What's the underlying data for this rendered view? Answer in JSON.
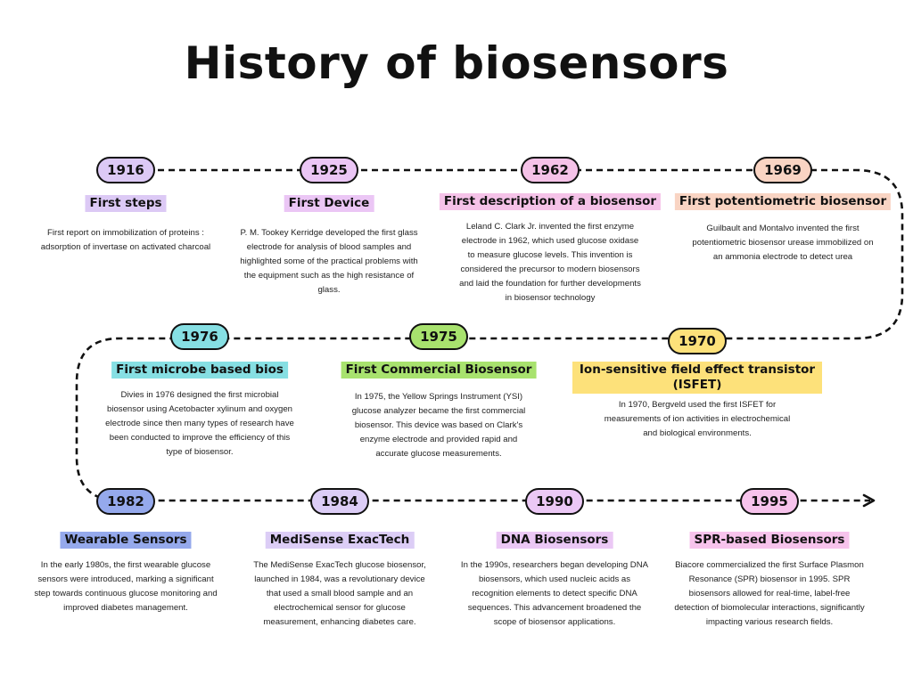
{
  "title": "History of biosensors",
  "milestones": [
    {
      "year": "1916",
      "heading": "First steps",
      "color": "#dcc9f5",
      "description": "First report on immobilization of proteins : adsorption of invertase on activated charcoal"
    },
    {
      "year": "1925",
      "heading": "First Device",
      "color": "#ebc6f5",
      "description": "P. M. Tookey Kerridge developed the first glass electrode for analysis of blood samples and highlighted some of the practical problems with the equipment such as the high resistance of glass."
    },
    {
      "year": "1962",
      "heading": "First description of a biosensor",
      "color": "#f5c2e8",
      "description": "Leland C. Clark Jr. invented the first enzyme electrode in 1962, which used glucose oxidase to measure glucose levels. This invention is considered the precursor to modern biosensors and laid the foundation for further developments in biosensor technology"
    },
    {
      "year": "1969",
      "heading": "First potentiometric biosensor",
      "color": "#f9d4c3",
      "description": "Guilbault and Montalvo invented the first potentiometric biosensor urease immobilized on an ammonia electrode to detect urea"
    },
    {
      "year": "1976",
      "heading": "First microbe based bios",
      "color": "#86dfe3",
      "description": "Divies in 1976 designed the first microbial biosensor using Acetobacter xylinum and oxygen electrode since then many types of research have been conducted to improve the efficiency of this type of biosensor."
    },
    {
      "year": "1975",
      "heading": "First Commercial Biosensor",
      "color": "#a8e26e",
      "description": "In 1975, the Yellow Springs Instrument (YSI) glucose analyzer became the first commercial biosensor. This device was based on Clark's enzyme electrode and provided rapid and accurate glucose measurements."
    },
    {
      "year": "1970",
      "heading": "Ion-sensitive field effect transistor (ISFET)",
      "color": "#fde17a",
      "description": "In 1970, Bergveld used the first ISFET for measurements of ion activities in electrochemical and biological environments."
    },
    {
      "year": "1982",
      "heading": "Wearable Sensors",
      "color": "#95a9ec",
      "description": "In the early 1980s, the first wearable glucose sensors were introduced, marking a significant step towards continuous glucose monitoring and improved diabetes management."
    },
    {
      "year": "1984",
      "heading": "MediSense ExacTech",
      "color": "#dccdf6",
      "description": "The MediSense ExacTech glucose biosensor, launched in 1984, was a revolutionary device that used a small blood sample and an electrochemical sensor for glucose measurement, enhancing diabetes care."
    },
    {
      "year": "1990",
      "heading": "DNA Biosensors",
      "color": "#ebc8f5",
      "description": "In the 1990s, researchers began developing DNA biosensors, which used nucleic acids as recognition elements to detect specific DNA sequences. This advancement broadened the scope of biosensor applications."
    },
    {
      "year": "1995",
      "heading": "SPR-based Biosensors",
      "color": "#f7c3ec",
      "description": "Biacore commercialized the first Surface Plasmon Resonance (SPR) biosensor in 1995. SPR biosensors allowed for real-time, label-free detection of biomolecular interactions, significantly impacting various research fields."
    }
  ]
}
